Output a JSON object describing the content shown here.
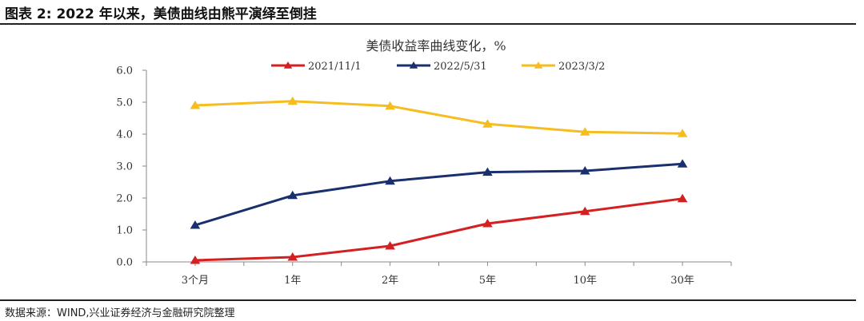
{
  "caption": "图表 2:  2022 年以来，美债曲线由熊平演绎至倒挂",
  "source": "数据来源：WIND,兴业证券经济与金融研究院整理",
  "chart_data": {
    "type": "line",
    "title": "美债收益率曲线变化，%",
    "categories": [
      "3个月",
      "1年",
      "2年",
      "5年",
      "10年",
      "30年"
    ],
    "ylim": [
      0,
      6
    ],
    "yticks": [
      "0.0",
      "1.0",
      "2.0",
      "3.0",
      "4.0",
      "5.0",
      "6.0"
    ],
    "grid": false,
    "legend_position": "top",
    "series": [
      {
        "name": "2021/11/1",
        "color": "#d42020",
        "values": [
          0.05,
          0.15,
          0.5,
          1.2,
          1.58,
          1.98
        ]
      },
      {
        "name": "2022/5/31",
        "color": "#1a2f6e",
        "values": [
          1.15,
          2.08,
          2.53,
          2.81,
          2.85,
          3.07
        ]
      },
      {
        "name": "2023/3/2",
        "color": "#f5bd1f",
        "values": [
          4.9,
          5.03,
          4.88,
          4.32,
          4.07,
          4.02
        ]
      }
    ]
  }
}
